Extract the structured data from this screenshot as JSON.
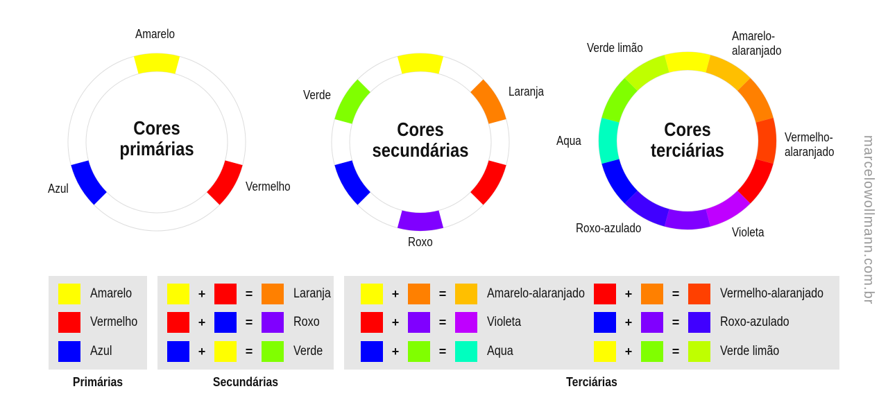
{
  "colors": {
    "amarelo": "#ffff00",
    "amarelo_alaranjado": "#ffbf00",
    "laranja": "#ff8000",
    "vermelho_alaranjado": "#ff4000",
    "vermelho": "#ff0000",
    "violeta": "#bf00ff",
    "roxo": "#8000ff",
    "roxo_azulado": "#4000ff",
    "azul": "#0000ff",
    "aqua": "#00ffbf",
    "verde": "#80ff00",
    "verde_limao": "#bfff00"
  },
  "wheels": [
    {
      "title_line1": "Cores",
      "title_line2": "primárias",
      "segments": [
        "amarelo",
        null,
        null,
        null,
        "vermelho",
        null,
        null,
        null,
        "azul",
        null,
        null,
        null
      ],
      "labels": [
        "Amarelo",
        "Vermelho",
        "Azul"
      ]
    },
    {
      "title_line1": "Cores",
      "title_line2": "secundárias",
      "segments": [
        "amarelo",
        null,
        "laranja",
        null,
        "vermelho",
        null,
        "roxo",
        null,
        "azul",
        null,
        "verde",
        null
      ],
      "labels": [
        "Verde",
        "Laranja",
        "Roxo"
      ]
    },
    {
      "title_line1": "Cores",
      "title_line2": "terciárias",
      "segments": [
        "amarelo",
        "amarelo_alaranjado",
        "laranja",
        "vermelho_alaranjado",
        "vermelho",
        "violeta",
        "roxo",
        "roxo_azulado",
        "azul",
        "aqua",
        "verde",
        "verde_limao"
      ],
      "labels": [
        "Verde limão",
        "Amarelo-\nalaranjado",
        "Aqua",
        "Vermelho-\nalaranjado",
        "Roxo-azulado",
        "Violeta"
      ]
    }
  ],
  "legend": {
    "primarias": {
      "caption": "Primárias",
      "items": [
        {
          "color": "amarelo",
          "name": "Amarelo"
        },
        {
          "color": "vermelho",
          "name": "Vermelho"
        },
        {
          "color": "azul",
          "name": "Azul"
        }
      ]
    },
    "secundarias": {
      "caption": "Secundárias",
      "items": [
        {
          "a": "amarelo",
          "b": "vermelho",
          "r": "laranja",
          "name": "Laranja"
        },
        {
          "a": "vermelho",
          "b": "azul",
          "r": "roxo",
          "name": "Roxo"
        },
        {
          "a": "azul",
          "b": "amarelo",
          "r": "verde",
          "name": "Verde"
        }
      ]
    },
    "terciarias": {
      "caption": "Terciárias",
      "items": [
        {
          "a": "amarelo",
          "b": "laranja",
          "r": "amarelo_alaranjado",
          "name": "Amarelo-alaranjado"
        },
        {
          "a": "vermelho",
          "b": "roxo",
          "r": "violeta",
          "name": "Violeta"
        },
        {
          "a": "azul",
          "b": "verde",
          "r": "aqua",
          "name": "Aqua"
        },
        {
          "a": "vermelho",
          "b": "laranja",
          "r": "vermelho_alaranjado",
          "name": "Vermelho-alaranjado"
        },
        {
          "a": "azul",
          "b": "roxo",
          "r": "roxo_azulado",
          "name": "Roxo-azulado"
        },
        {
          "a": "amarelo",
          "b": "verde",
          "r": "verde_limao",
          "name": "Verde limão"
        }
      ]
    },
    "plus": "+",
    "equals": "="
  },
  "watermark": "marcelowollmann.com.br"
}
